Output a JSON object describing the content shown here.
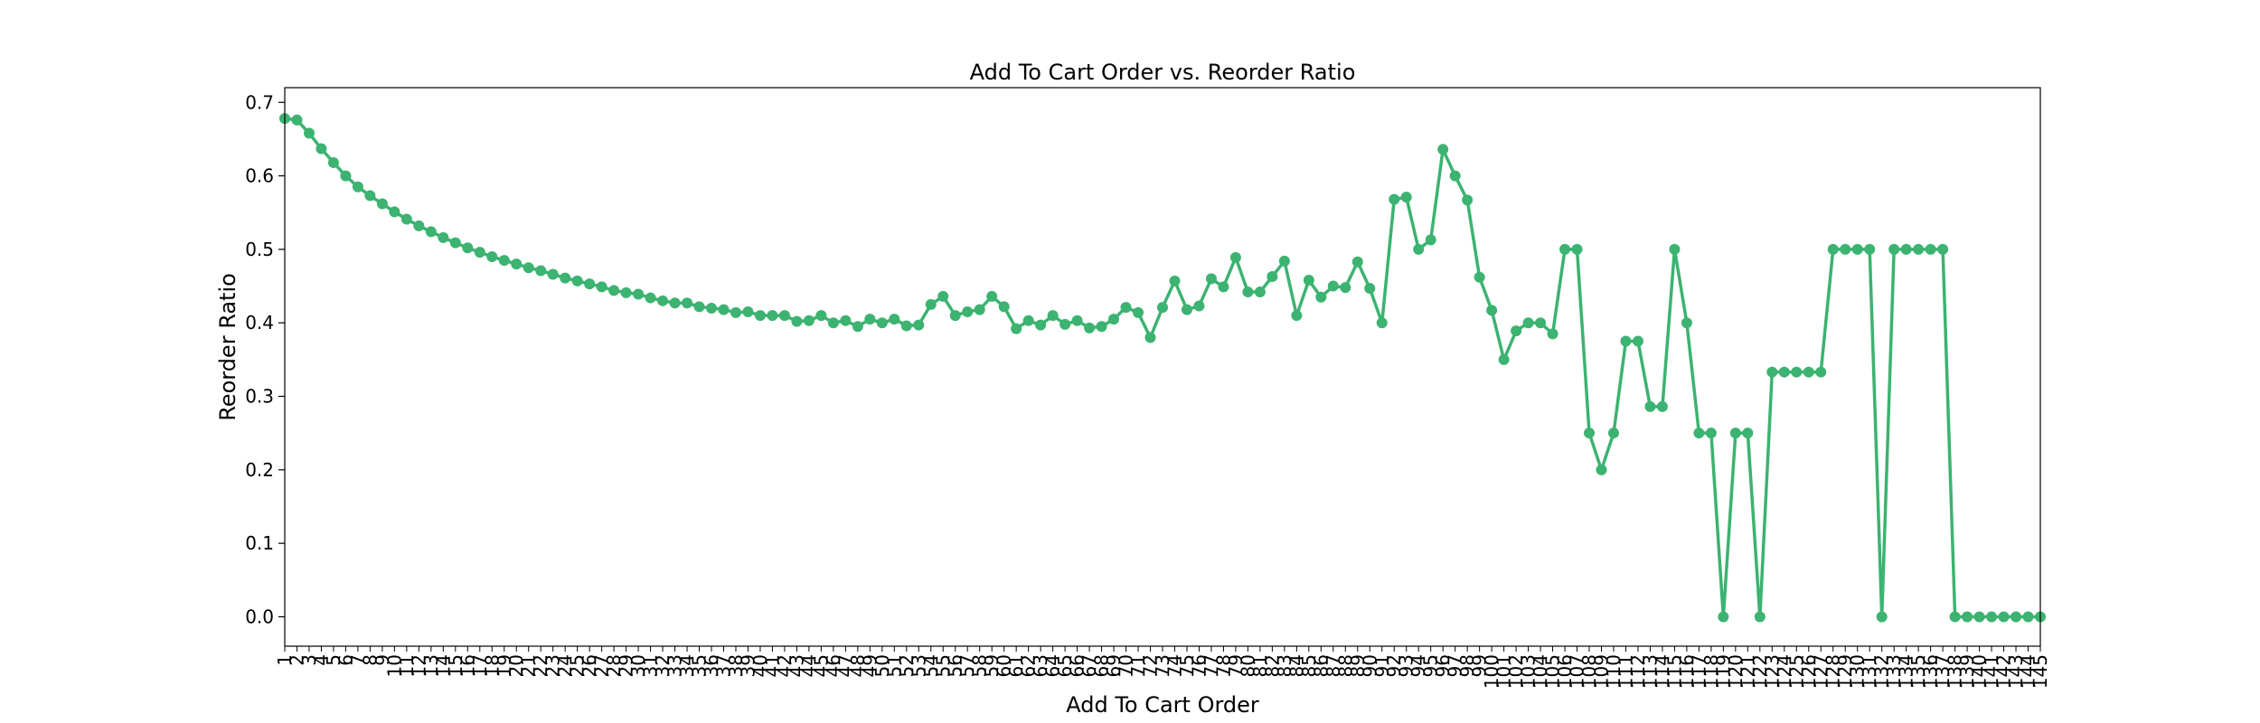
{
  "chart_data": {
    "type": "line",
    "title": "Add To Cart Order vs. Reorder Ratio",
    "xlabel": "Add To Cart Order",
    "ylabel": "Reorder Ratio",
    "ylim": [
      -0.04,
      0.72
    ],
    "yticks": [
      0.0,
      0.1,
      0.2,
      0.3,
      0.4,
      0.5,
      0.6,
      0.7
    ],
    "grid": false,
    "legend": "none",
    "color": "#3cb371",
    "x": [
      1,
      2,
      3,
      4,
      5,
      6,
      7,
      8,
      9,
      10,
      11,
      12,
      13,
      14,
      15,
      16,
      17,
      18,
      19,
      20,
      21,
      22,
      23,
      24,
      25,
      26,
      27,
      28,
      29,
      30,
      31,
      32,
      33,
      34,
      35,
      36,
      37,
      38,
      39,
      40,
      41,
      42,
      43,
      44,
      45,
      46,
      47,
      48,
      49,
      50,
      51,
      52,
      53,
      54,
      55,
      56,
      57,
      58,
      59,
      60,
      61,
      62,
      63,
      64,
      65,
      66,
      67,
      68,
      69,
      70,
      71,
      72,
      73,
      74,
      75,
      76,
      77,
      78,
      79,
      80,
      81,
      82,
      83,
      84,
      85,
      86,
      87,
      88,
      89,
      90,
      91,
      92,
      93,
      94,
      95,
      96,
      97,
      98,
      99,
      100,
      101,
      102,
      103,
      104,
      105,
      106,
      107,
      108,
      109,
      110,
      111,
      112,
      113,
      114,
      115,
      116,
      117,
      118,
      119,
      120,
      121,
      122,
      123,
      124,
      125,
      126,
      127,
      128,
      129,
      130,
      131,
      132,
      133,
      134,
      135,
      136,
      137,
      138,
      139,
      140,
      141,
      142,
      143,
      144,
      145
    ],
    "values": [
      0.678,
      0.676,
      0.658,
      0.637,
      0.618,
      0.6,
      0.585,
      0.573,
      0.562,
      0.551,
      0.541,
      0.532,
      0.524,
      0.516,
      0.509,
      0.502,
      0.496,
      0.49,
      0.485,
      0.48,
      0.475,
      0.471,
      0.466,
      0.461,
      0.457,
      0.453,
      0.449,
      0.444,
      0.441,
      0.439,
      0.434,
      0.43,
      0.427,
      0.427,
      0.422,
      0.42,
      0.418,
      0.414,
      0.415,
      0.41,
      0.41,
      0.41,
      0.402,
      0.403,
      0.41,
      0.4,
      0.403,
      0.395,
      0.405,
      0.4,
      0.405,
      0.396,
      0.397,
      0.425,
      0.436,
      0.41,
      0.415,
      0.418,
      0.436,
      0.422,
      0.392,
      0.403,
      0.397,
      0.41,
      0.398,
      0.403,
      0.393,
      0.395,
      0.405,
      0.421,
      0.414,
      0.38,
      0.421,
      0.457,
      0.418,
      0.423,
      0.46,
      0.449,
      0.489,
      0.442,
      0.442,
      0.463,
      0.484,
      0.41,
      0.458,
      0.435,
      0.45,
      0.448,
      0.483,
      0.447,
      0.4,
      0.568,
      0.571,
      0.5,
      0.513,
      0.636,
      0.6,
      0.567,
      0.462,
      0.417,
      0.35,
      0.389,
      0.4,
      0.4,
      0.385,
      0.5,
      0.5,
      0.25,
      0.2,
      0.25,
      0.375,
      0.375,
      0.286,
      0.286,
      0.5,
      0.4,
      0.25,
      0.25,
      0.0,
      0.25,
      0.25,
      0.0,
      0.333,
      0.333,
      0.333,
      0.333,
      0.333,
      0.5,
      0.5,
      0.5,
      0.5,
      0.0,
      0.5,
      0.5,
      0.5,
      0.5,
      0.5,
      0.0,
      0.0,
      0.0,
      0.0,
      0.0,
      0.0,
      0.0,
      0.0
    ]
  }
}
